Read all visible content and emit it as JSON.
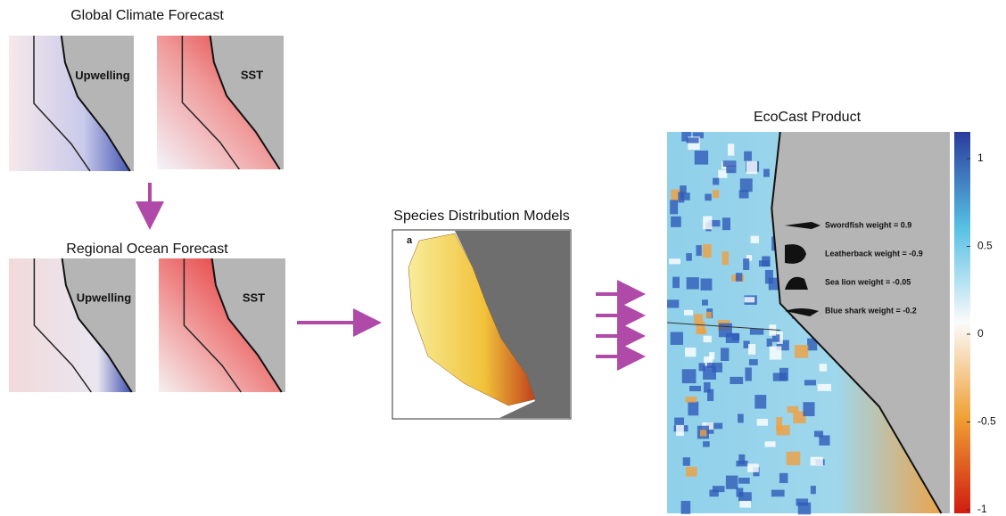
{
  "global_forecast": {
    "title": "Global Climate Forecast",
    "panels": [
      "Upwelling",
      "SST"
    ]
  },
  "regional_forecast": {
    "title": "Regional Ocean Forecast",
    "panels": [
      "Upwelling",
      "SST"
    ]
  },
  "species_distribution": {
    "title": "Species Distribution Models",
    "panel_label": "a"
  },
  "ecocast": {
    "title": "EcoCast Product",
    "weights": [
      "Swordfish weight = 0.9",
      "Leatherback weight = -0.9",
      "Sea lion weight = -0.05",
      "Blue shark weight = -0.2"
    ],
    "colorbar": {
      "range": [
        -1,
        1
      ],
      "ticks": [
        1,
        0.5,
        0,
        -0.5,
        -1
      ]
    }
  }
}
